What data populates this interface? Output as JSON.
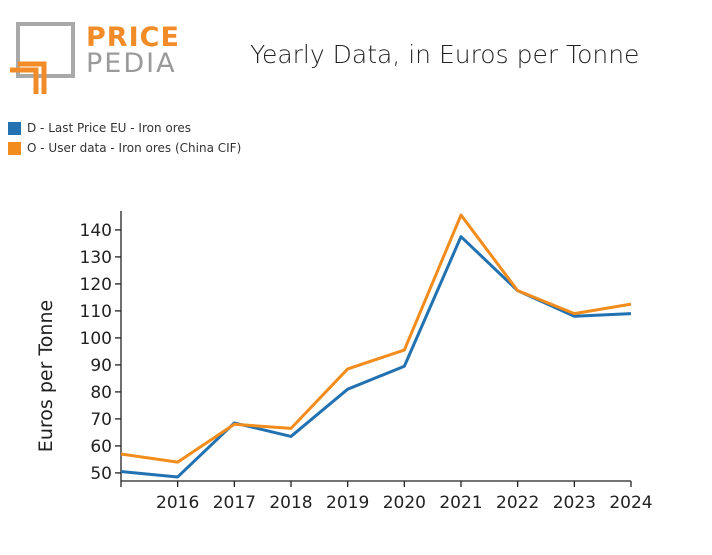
{
  "logo": {
    "word1": "PRICE",
    "word2": "PEDIA"
  },
  "chart_data": {
    "type": "line",
    "title": "Yearly Data, in Euros per Tonne",
    "xlabel": "",
    "ylabel": "Euros per Tonne",
    "x": [
      2015,
      2016,
      2017,
      2018,
      2019,
      2020,
      2021,
      2022,
      2023,
      2024
    ],
    "x_tick_labels": [
      "2016",
      "2017",
      "2018",
      "2019",
      "2020",
      "2021",
      "2022",
      "2023",
      "2024"
    ],
    "y_ticks": [
      50,
      60,
      70,
      80,
      90,
      100,
      110,
      120,
      130,
      140
    ],
    "xlim": [
      2015,
      2024
    ],
    "ylim": [
      47,
      147
    ],
    "grid": false,
    "legend_position": "top-left",
    "series": [
      {
        "name": "D - Last Price EU - Iron ores",
        "color": "#2271b1",
        "values": [
          50.5,
          48.5,
          68.5,
          63.5,
          81,
          89.5,
          137.5,
          117.5,
          108,
          109
        ]
      },
      {
        "name": "O - User data - Iron ores (China CIF)",
        "color": "#f28c1c",
        "values": [
          57,
          54,
          68,
          66.5,
          88.5,
          95.5,
          145.5,
          117.5,
          109,
          112.5
        ]
      }
    ]
  }
}
